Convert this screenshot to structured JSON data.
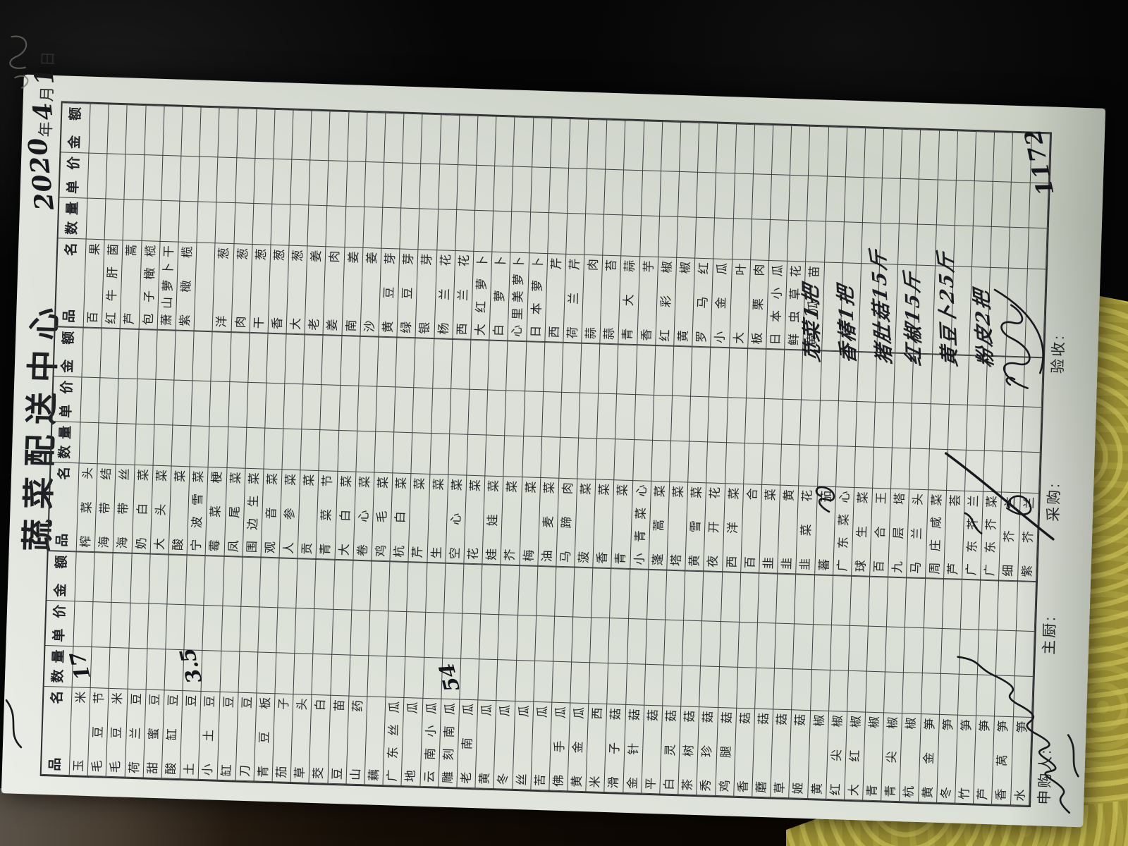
{
  "title": "蔬菜配送中心",
  "date": {
    "year": "2020",
    "year_unit": "年",
    "month": "4",
    "month_unit": "月",
    "day": "1",
    "day_unit": "日"
  },
  "table": {
    "headers": {
      "name": "品 名",
      "qty": "数量",
      "price": "单价",
      "amount": "金 额"
    },
    "groups": [
      {
        "items": [
          "玉米",
          "毛豆节",
          "毛豆米",
          "荷兰豆",
          "甜蜜豆",
          "酸缸豆",
          "土豆",
          "小土豆",
          "缸豆",
          "刀豆",
          "青豆板",
          "茄子",
          "草头",
          "茭白",
          "豆苗",
          "山药",
          "藕",
          "广东丝瓜",
          "地瓜",
          "云南小瓜",
          "雕刻南瓜",
          "老南瓜",
          "黄瓜",
          "冬瓜",
          "丝瓜",
          "苦瓜",
          "佛手瓜",
          "黄金瓜",
          "米西",
          "滑子菇",
          "金针菇",
          "平菇",
          "白灵菇",
          "茶树菇",
          "秀珍菇",
          "鸡腿菇",
          "香菇",
          "蘑菇",
          "草菇",
          "姬菇",
          "黄椒",
          "红尖椒",
          "大红椒",
          "青椒",
          "青尖椒",
          "杭椒",
          "黄金笋",
          "冬笋",
          "竹笋",
          "芦笋",
          "香莴笋",
          "水笋"
        ]
      },
      {
        "items": [
          "榨菜头",
          "海带结",
          "海带丝",
          "奶白菜",
          "大头菜",
          "酸菜",
          "宁波雪菜",
          "霉菜梗",
          "凤尾菜",
          "围边生菜",
          "观音菜",
          "人参菜",
          "贡菜",
          "青菜节",
          "大白菜",
          "卷心菜",
          "鸡毛菜",
          "杭白菜",
          "芹菜",
          "生菜",
          "空心菜",
          "花菜",
          "娃娃菜",
          "芥菜",
          "梅菜",
          "油麦菜",
          "马蹄肉",
          "菠菜",
          "香菜",
          "青菜",
          "小青菜心",
          "蓬蒿菜",
          "塔菜",
          "黄雪菜",
          "夜开花",
          "西洋菜",
          "百合",
          "韭菜",
          "韭黄",
          "韭菜花",
          "蕃茄",
          "广东菜心",
          "球生菜",
          "百合王",
          "九层塔",
          "马兰头",
          "周庄咸菜",
          "芦荟",
          "广东芥兰",
          "广东芥菜",
          "细芥兰",
          "紫芥兰"
        ]
      },
      {
        "items": [
          "百果",
          "红牛肝菌",
          "芦蒿",
          "包子橄榄",
          "萧山萝卜干",
          "紫橄榄",
          "",
          "洋葱",
          "肉葱",
          "干葱",
          "香葱",
          "大葱",
          "老姜",
          "姜肉",
          "南姜",
          "沙姜",
          "黄豆芽",
          "绿豆芽",
          "银芽",
          "杨兰花",
          "西兰花",
          "大红萝卜",
          "白萝卜",
          "心里美萝卜",
          "日本萝卜",
          "西芹",
          "荷兰芹",
          "蒜肉",
          "蒜苔",
          "青大蒜",
          "香芋",
          "红彩椒",
          "黄椒",
          "罗马红",
          "小金瓜",
          "大叶",
          "板栗肉",
          "日本小瓜",
          "鲜虫草花",
          "黄瓜苗",
          "",
          "",
          "",
          "",
          "",
          "",
          "",
          "",
          "",
          "",
          "",
          ""
        ]
      }
    ],
    "quantities": [
      {
        "group": 0,
        "row": 0,
        "text": "17"
      },
      {
        "group": 0,
        "row": 6,
        "text": "3.5"
      },
      {
        "group": 0,
        "row": 20,
        "text": "54"
      }
    ],
    "handwritten_entries": [
      {
        "text": "苋菜1把"
      },
      {
        "text": "香椿1把"
      },
      {
        "text": "猪肚菇15斤"
      },
      {
        "text": "红椒15斤"
      },
      {
        "text": "黄豆卜25斤"
      },
      {
        "text": "粉皮2把"
      }
    ]
  },
  "footer": {
    "requester_label": "申购人:",
    "chef_label": "主厨:",
    "buyer_label": "采购:",
    "inspector_label": "验收:",
    "total_amount": "1172"
  },
  "colors": {
    "paper": "#dde1d7",
    "ink": "#17171d",
    "grid": "#3d3e40",
    "cloth": "#9c8f33"
  }
}
